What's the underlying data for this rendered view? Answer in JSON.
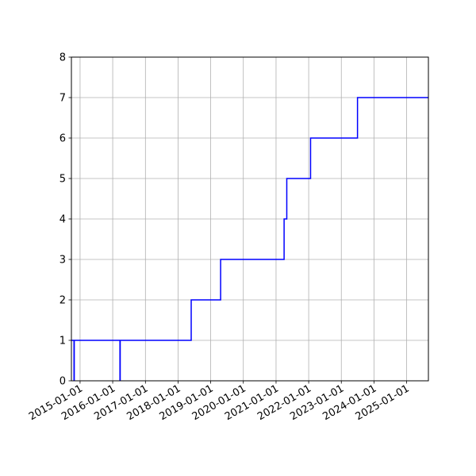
{
  "chart_data": {
    "type": "line",
    "step": "post",
    "title": "",
    "xlabel": "",
    "ylabel": "",
    "grid": true,
    "line_color": "#0000ff",
    "x_axis": "date",
    "xlim": [
      "2014-09-26",
      "2025-09-01"
    ],
    "ylim": [
      0,
      8
    ],
    "x_ticks": [
      "2015-01-01",
      "2016-01-01",
      "2017-01-01",
      "2018-01-01",
      "2019-01-01",
      "2020-01-01",
      "2021-01-01",
      "2022-01-01",
      "2023-01-01",
      "2024-01-01",
      "2025-01-01"
    ],
    "y_ticks": [
      0,
      1,
      2,
      3,
      4,
      5,
      6,
      7,
      8
    ],
    "y_tick_labels": [
      "0",
      "1",
      "2",
      "3",
      "4",
      "5",
      "6",
      "7",
      "8"
    ],
    "series": [
      {
        "points": [
          {
            "x": "2014-09-26",
            "y": 1
          },
          {
            "x": "2014-10-25",
            "y": 0
          },
          {
            "x": "2014-10-28",
            "y": 1
          },
          {
            "x": "2016-03-22",
            "y": 0
          },
          {
            "x": "2016-03-25",
            "y": 1
          },
          {
            "x": "2018-05-28",
            "y": 2
          },
          {
            "x": "2019-04-22",
            "y": 3
          },
          {
            "x": "2021-04-01",
            "y": 4
          },
          {
            "x": "2021-05-01",
            "y": 5
          },
          {
            "x": "2022-01-22",
            "y": 6
          },
          {
            "x": "2023-07-01",
            "y": 7
          },
          {
            "x": "2025-09-01",
            "y": 7
          }
        ]
      }
    ]
  }
}
